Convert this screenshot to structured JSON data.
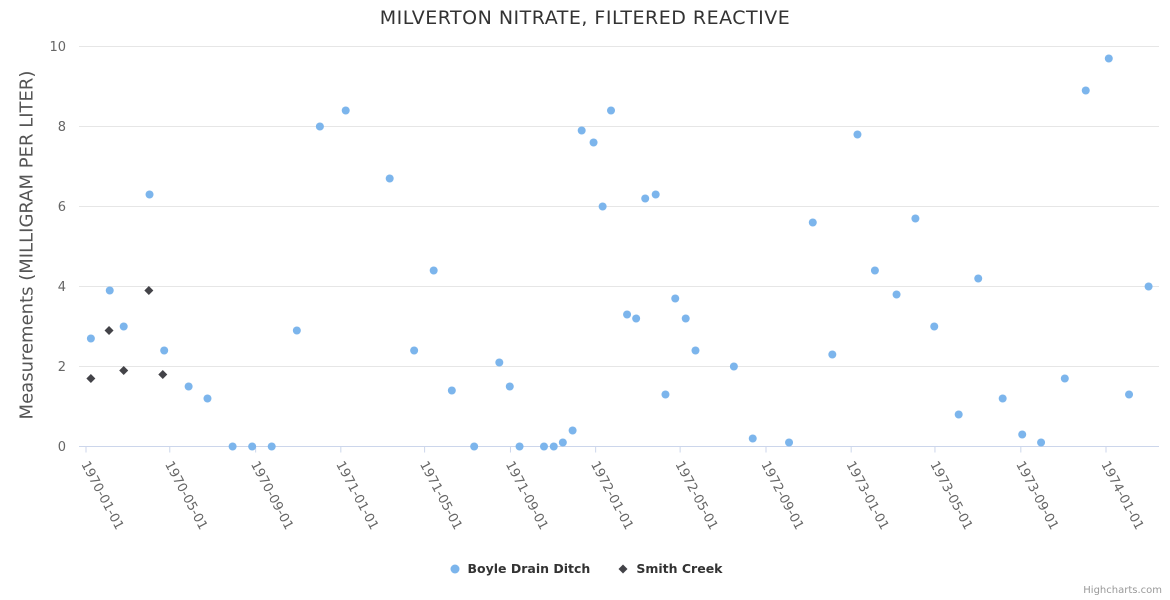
{
  "chart_data": {
    "type": "scatter",
    "title": "MILVERTON NITRATE, FILTERED REACTIVE",
    "xlabel": "",
    "ylabel": "Measurements (MILLIGRAM PER LITER)",
    "ylim": [
      0,
      10
    ],
    "yticks": [
      0,
      2,
      4,
      6,
      8,
      10
    ],
    "xticks": [
      "1970-01-01",
      "1970-05-01",
      "1970-09-01",
      "1971-01-01",
      "1971-05-01",
      "1971-09-01",
      "1972-01-01",
      "1972-05-01",
      "1972-09-01",
      "1973-01-01",
      "1973-05-01",
      "1973-09-01",
      "1974-01-01"
    ],
    "x_range": [
      "1969-12-22",
      "1974-03-19"
    ],
    "grid": true,
    "legend_position": "bottom-center",
    "series": [
      {
        "name": "Boyle Drain Ditch",
        "color": "#7cb5ec",
        "marker": "circle",
        "points": [
          [
            "1970-01-08",
            2.7
          ],
          [
            "1970-02-04",
            3.9
          ],
          [
            "1970-02-24",
            3.0
          ],
          [
            "1970-04-02",
            6.3
          ],
          [
            "1970-04-23",
            2.4
          ],
          [
            "1970-05-28",
            1.5
          ],
          [
            "1970-06-24",
            1.2
          ],
          [
            "1970-07-30",
            0.0
          ],
          [
            "1970-08-27",
            0.0
          ],
          [
            "1970-09-24",
            0.0
          ],
          [
            "1970-10-30",
            2.9
          ],
          [
            "1970-12-02",
            8.0
          ],
          [
            "1971-01-08",
            8.4
          ],
          [
            "1971-03-12",
            6.7
          ],
          [
            "1971-04-16",
            2.4
          ],
          [
            "1971-05-14",
            4.4
          ],
          [
            "1971-06-09",
            1.4
          ],
          [
            "1971-07-11",
            0.0
          ],
          [
            "1971-08-16",
            2.1
          ],
          [
            "1971-08-31",
            1.5
          ],
          [
            "1971-09-14",
            0.0
          ],
          [
            "1971-10-19",
            0.0
          ],
          [
            "1971-11-02",
            0.0
          ],
          [
            "1971-11-15",
            0.1
          ],
          [
            "1971-11-29",
            0.4
          ],
          [
            "1971-12-12",
            7.9
          ],
          [
            "1971-12-29",
            7.6
          ],
          [
            "1972-01-11",
            6.0
          ],
          [
            "1972-01-23",
            8.4
          ],
          [
            "1972-02-15",
            3.3
          ],
          [
            "1972-02-28",
            3.2
          ],
          [
            "1972-03-12",
            6.2
          ],
          [
            "1972-03-27",
            6.3
          ],
          [
            "1972-04-10",
            1.3
          ],
          [
            "1972-04-24",
            3.7
          ],
          [
            "1972-05-09",
            3.2
          ],
          [
            "1972-05-23",
            2.4
          ],
          [
            "1972-07-17",
            2.0
          ],
          [
            "1972-08-13",
            0.2
          ],
          [
            "1972-10-04",
            0.1
          ],
          [
            "1972-11-07",
            5.6
          ],
          [
            "1972-12-05",
            2.3
          ],
          [
            "1973-01-10",
            7.8
          ],
          [
            "1973-02-04",
            4.4
          ],
          [
            "1973-03-07",
            3.8
          ],
          [
            "1973-04-03",
            5.7
          ],
          [
            "1973-04-30",
            3.0
          ],
          [
            "1973-06-04",
            0.8
          ],
          [
            "1973-07-02",
            4.2
          ],
          [
            "1973-08-06",
            1.2
          ],
          [
            "1973-09-03",
            0.3
          ],
          [
            "1973-09-30",
            0.1
          ],
          [
            "1973-11-03",
            1.7
          ],
          [
            "1973-12-03",
            8.9
          ],
          [
            "1974-01-05",
            9.7
          ],
          [
            "1974-02-03",
            1.3
          ],
          [
            "1974-03-03",
            4.0
          ]
        ]
      },
      {
        "name": "Smith Creek",
        "color": "#434348",
        "marker": "diamond",
        "points": [
          [
            "1970-01-08",
            1.7
          ],
          [
            "1970-02-03",
            2.9
          ],
          [
            "1970-02-24",
            1.9
          ],
          [
            "1970-04-01",
            3.9
          ],
          [
            "1970-04-21",
            1.8
          ]
        ]
      }
    ]
  },
  "credits": {
    "label": "Highcharts.com"
  },
  "theme": {
    "background": "#ffffff",
    "grid_color": "#e6e6e6",
    "axis_color": "#ccd6eb",
    "tick_label_color": "#666666",
    "title_color": "#333333",
    "axis_title_color": "#555555",
    "legend_text_color": "#333333",
    "credits_color": "#999999"
  }
}
